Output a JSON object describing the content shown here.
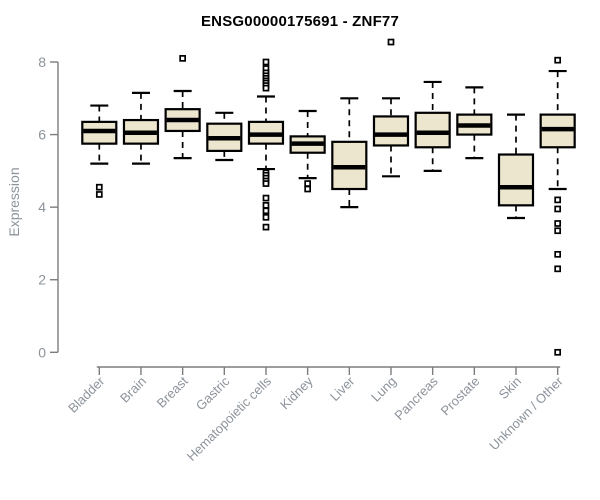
{
  "chart_data": {
    "type": "boxplot",
    "title": "ENSG00000175691 - ZNF77",
    "xlabel": "",
    "ylabel": "Expression",
    "ylim": [
      0,
      8
    ],
    "yticks": [
      0,
      2,
      4,
      6,
      8
    ],
    "grid": false,
    "legend": "none",
    "categories": [
      "Bladder",
      "Brain",
      "Breast",
      "Gastric",
      "Hematopoietic cells",
      "Kidney",
      "Liver",
      "Lung",
      "Pancreas",
      "Prostate",
      "Skin",
      "Unknown / Other"
    ],
    "series": [
      {
        "category": "Bladder",
        "whisker_low": 5.2,
        "q1": 5.75,
        "median": 6.1,
        "q3": 6.35,
        "whisker_high": 6.8,
        "outliers": [
          4.55,
          4.35
        ]
      },
      {
        "category": "Brain",
        "whisker_low": 5.2,
        "q1": 5.75,
        "median": 6.05,
        "q3": 6.4,
        "whisker_high": 7.15,
        "outliers": []
      },
      {
        "category": "Breast",
        "whisker_low": 5.35,
        "q1": 6.1,
        "median": 6.4,
        "q3": 6.7,
        "whisker_high": 7.2,
        "outliers": [
          8.1
        ]
      },
      {
        "category": "Gastric",
        "whisker_low": 5.3,
        "q1": 5.55,
        "median": 5.9,
        "q3": 6.3,
        "whisker_high": 6.6,
        "outliers": []
      },
      {
        "category": "Hematopoietic cells",
        "whisker_low": 5.05,
        "q1": 5.75,
        "median": 6.0,
        "q3": 6.35,
        "whisker_high": 7.05,
        "outliers": [
          8.0,
          7.82,
          7.7,
          7.62,
          7.55,
          7.48,
          7.42,
          7.35,
          7.28,
          4.95,
          4.88,
          4.8,
          4.72,
          4.65,
          4.25,
          4.05,
          3.9,
          3.72,
          3.45
        ]
      },
      {
        "category": "Kidney",
        "whisker_low": 4.8,
        "q1": 5.5,
        "median": 5.75,
        "q3": 5.95,
        "whisker_high": 6.65,
        "outliers": [
          4.65,
          4.5
        ]
      },
      {
        "category": "Liver",
        "whisker_low": 4.0,
        "q1": 4.5,
        "median": 5.1,
        "q3": 5.8,
        "whisker_high": 7.0,
        "outliers": []
      },
      {
        "category": "Lung",
        "whisker_low": 4.85,
        "q1": 5.7,
        "median": 6.0,
        "q3": 6.5,
        "whisker_high": 7.0,
        "outliers": [
          8.55
        ]
      },
      {
        "category": "Pancreas",
        "whisker_low": 5.0,
        "q1": 5.65,
        "median": 6.05,
        "q3": 6.6,
        "whisker_high": 7.45,
        "outliers": []
      },
      {
        "category": "Prostate",
        "whisker_low": 5.35,
        "q1": 6.0,
        "median": 6.25,
        "q3": 6.55,
        "whisker_high": 7.3,
        "outliers": []
      },
      {
        "category": "Skin",
        "whisker_low": 3.7,
        "q1": 4.05,
        "median": 4.55,
        "q3": 5.45,
        "whisker_high": 6.55,
        "outliers": []
      },
      {
        "category": "Unknown / Other",
        "whisker_low": 4.5,
        "q1": 5.65,
        "median": 6.15,
        "q3": 6.55,
        "whisker_high": 7.75,
        "outliers": [
          8.05,
          4.2,
          3.95,
          3.55,
          3.35,
          2.7,
          2.3,
          0.0
        ]
      }
    ],
    "colors": {
      "box_fill": "#ece6cf",
      "box_stroke": "#000000",
      "median": "#000000",
      "whisker": "#000000",
      "outlier_stroke": "#000000",
      "outlier_fill": "#ffffff",
      "axis_line": "#7d7d7d",
      "tick_label": "#8c939b",
      "title": "#000000"
    }
  }
}
